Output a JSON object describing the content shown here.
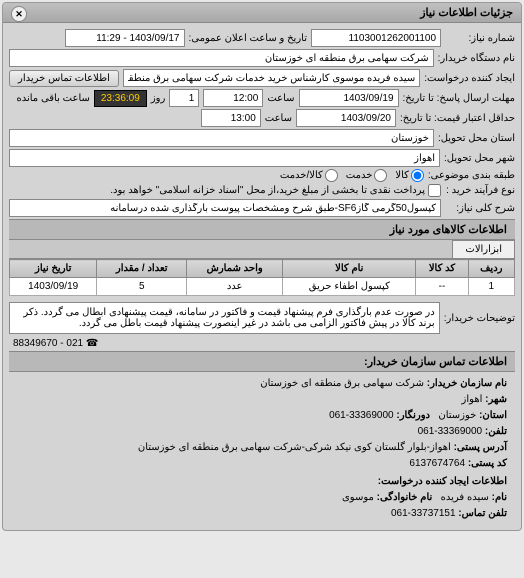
{
  "header": {
    "title": "جزئیات اطلاعات نیاز",
    "close": "✕"
  },
  "form": {
    "request_number_label": "شماره نیاز:",
    "request_number": "1103001262001100",
    "announce_label": "تاریخ و ساعت اعلان عمومی:",
    "announce_value": "1403/09/17 - 11:29",
    "org_label": "نام دستگاه خریدار:",
    "org_value": "شرکت سهامی برق منطقه ای خوزستان",
    "creator_label": "ایجاد کننده درخواست:",
    "creator_value": "سیده فریده موسوی کارشناس خرید خدمات شرکت سهامی برق منطقه ای خوز",
    "contact_btn": "اطلاعات تماس خریدار",
    "deadline_label": "مهلت ارسال پاسخ: تا تاریخ:",
    "deadline_date": "1403/09/19",
    "deadline_time_label": "ساعت",
    "deadline_time": "12:00",
    "days_label": "روز",
    "days_value": "1",
    "remain_label": "ساعت باقی مانده",
    "remain_value": "23:36:09",
    "price_valid_label": "حداقل اعتبار قیمت: تا تاریخ:",
    "price_valid_date": "1403/09/20",
    "price_valid_time": "13:00",
    "province_label": "استان محل تحویل:",
    "province_value": "خوزستان",
    "city_label": "شهر محل تحویل:",
    "city_value": "اهواز",
    "grouping_label": "طبقه بندی موضوعی:",
    "radio_goods": "کالا",
    "radio_service": "خدمت",
    "radio_both": "کالا/خدمت",
    "process_label": "نوع فرآیند خرید :",
    "check_direct": "پرداخت نقدی تا بخشی از مبلغ خرید،از محل \"اسناد خزانه اسلامی\" خواهد بود.",
    "title_label": "شرح کلی نیاز:",
    "title_value": "کپسول50گرمی گازSF6-طبق شرح ومشخصات پیوست بارگذاری شده درسامانه"
  },
  "goods": {
    "section_title": "اطلاعات کالاهای مورد نیاز",
    "tab": "ابزارالات",
    "columns": [
      "ردیف",
      "کد کالا",
      "نام کالا",
      "واحد شمارش",
      "تعداد / مقدار",
      "تاریخ نیاز"
    ],
    "rows": [
      [
        "1",
        "--",
        "کپسول اطفاء حریق",
        "عدد",
        "5",
        "1403/09/19"
      ]
    ]
  },
  "notes": {
    "label": "توضیحات خریدار:",
    "text": "در صورت عدم بارگذاری فرم پیشنهاد قیمت و فاکتور در سامانه، قیمت پیشنهادی ابطال می گردد. ذکر برند کالا در پیش فاکتور الزامی می باشد در غیر اینصورت پیشنهاد قیمت باطل می گردد."
  },
  "contact": {
    "section_title": "اطلاعات تماس سازمان خریدار:",
    "org_label": "نام سازمان خریدار:",
    "org_value": "شرکت سهامی برق منطقه ای خوزستان",
    "city_label": "شهر:",
    "city_value": "اهواز",
    "province_label": "استان:",
    "province_value": "خوزستان",
    "fax_label": "دورنگار:",
    "fax_value": "33369000-061",
    "phone_label": "تلفن:",
    "phone_value": "33369000-061",
    "address_label": "آدرس پستی:",
    "address_value": "اهواز-بلوار گلستان کوی نیکد شرکی-شرکت سهامی برق منطقه ای خوزستان",
    "postal_label": "کد پستی:",
    "postal_value": "6137674764",
    "creator_title": "اطلاعات ایجاد کننده درخواست:",
    "name_label": "نام:",
    "name_value": "سیده فریده",
    "family_label": "نام خانوادگی:",
    "family_value": "موسوی",
    "tel_label": "تلفن تماس:",
    "tel_value": "33737151-061"
  },
  "footer": {
    "phone": "021 - 88349670",
    "icon": "☎"
  }
}
